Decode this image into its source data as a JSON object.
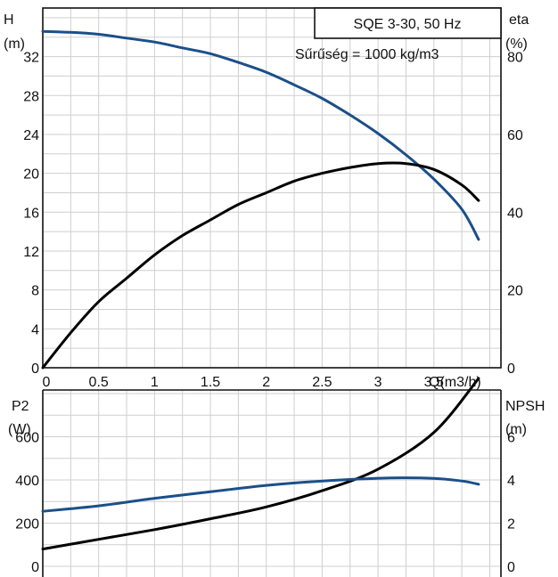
{
  "chart_data": [
    {
      "type": "line",
      "title": "SQE 3-30, 50 Hz",
      "subtitle": "Sűrűség = 1000 kg/m3",
      "xlabel": "Q(m3/h)",
      "ylabel_left": "H",
      "ylabel_left_unit": "(m)",
      "ylabel_right": "eta",
      "ylabel_right_unit": "(%)",
      "xlim": [
        0,
        4.1
      ],
      "ylim_left": [
        0,
        37
      ],
      "ylim_right": [
        0,
        92.5
      ],
      "x_ticks": [
        "0",
        "0.5",
        "1",
        "1.5",
        "2",
        "2.5",
        "3",
        "3.5"
      ],
      "y_ticks_left": [
        "0",
        "4",
        "8",
        "12",
        "16",
        "20",
        "24",
        "28",
        "32"
      ],
      "y_ticks_right": [
        "0",
        "20",
        "40",
        "60",
        "80"
      ],
      "grid": true,
      "series": [
        {
          "axis": "left",
          "color": "#1b4f8a",
          "x": [
            0,
            0.25,
            0.5,
            0.75,
            1.0,
            1.25,
            1.5,
            1.75,
            2.0,
            2.25,
            2.5,
            2.75,
            3.0,
            3.25,
            3.5,
            3.75,
            3.9
          ],
          "values": [
            34.6,
            34.5,
            34.3,
            33.9,
            33.5,
            32.9,
            32.3,
            31.4,
            30.4,
            29.1,
            27.7,
            26.0,
            24.1,
            21.9,
            19.4,
            16.3,
            13.2
          ]
        },
        {
          "axis": "right",
          "color": "#000000",
          "x": [
            0,
            0.25,
            0.5,
            0.75,
            1.0,
            1.25,
            1.5,
            1.75,
            2.0,
            2.25,
            2.5,
            2.75,
            3.0,
            3.25,
            3.5,
            3.75,
            3.9
          ],
          "values": [
            0,
            9,
            17,
            23,
            29,
            34,
            38,
            42,
            45,
            48,
            50,
            51.5,
            52.5,
            52.5,
            51,
            47,
            43
          ]
        }
      ]
    },
    {
      "type": "line",
      "ylabel_left": "P2",
      "ylabel_left_unit": "(W)",
      "ylabel_right": "NPSH",
      "ylabel_right_unit": "(m)",
      "xlim": [
        0,
        4.1
      ],
      "ylim_left": [
        0,
        900
      ],
      "ylim_right": [
        0,
        9
      ],
      "y_ticks_left": [
        "0",
        "200",
        "400",
        "600"
      ],
      "y_ticks_right": [
        "0",
        "2",
        "4",
        "6"
      ],
      "grid": true,
      "series": [
        {
          "axis": "left",
          "color": "#000000",
          "x": [
            0,
            0.5,
            1.0,
            1.5,
            2.0,
            2.5,
            3.0,
            3.5,
            3.9
          ],
          "values": [
            80,
            125,
            170,
            220,
            275,
            350,
            450,
            620,
            870
          ]
        },
        {
          "axis": "right",
          "color": "#1b4f8a",
          "x": [
            0,
            0.5,
            1.0,
            1.5,
            2.0,
            2.5,
            3.0,
            3.25,
            3.5,
            3.75,
            3.9
          ],
          "values": [
            2.55,
            2.8,
            3.15,
            3.45,
            3.75,
            3.95,
            4.08,
            4.1,
            4.07,
            3.95,
            3.8
          ]
        }
      ]
    }
  ]
}
